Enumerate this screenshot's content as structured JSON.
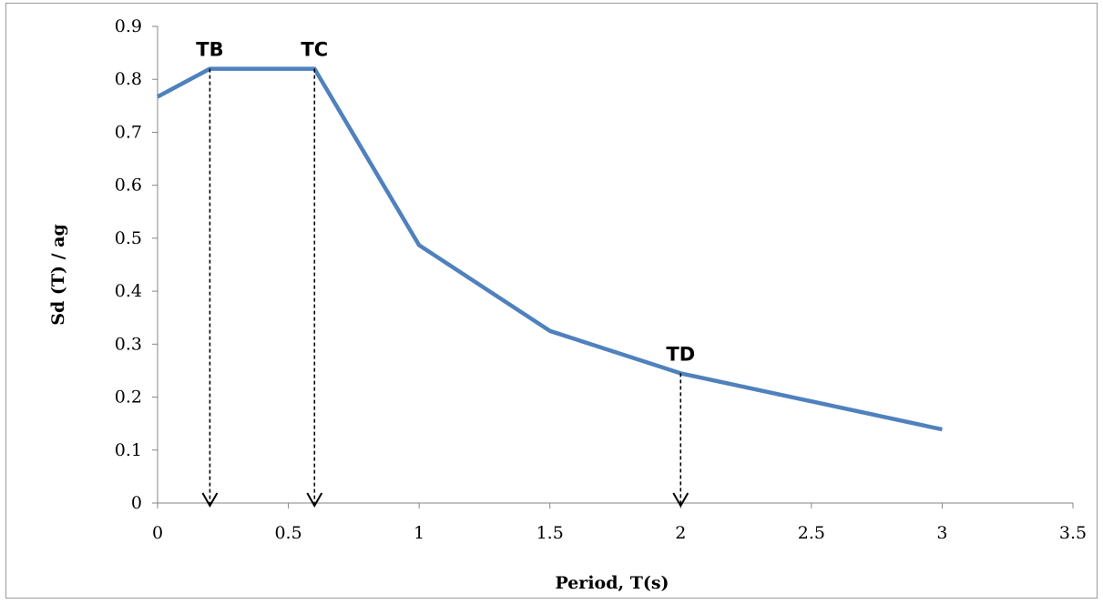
{
  "chart_data": {
    "type": "line",
    "title": "",
    "xlabel": "Period, T(s)",
    "ylabel": "Sd (T) / ag",
    "xlim": [
      0,
      3.5
    ],
    "ylim": [
      0,
      0.9
    ],
    "xticks": [
      0,
      0.5,
      1,
      1.5,
      2,
      2.5,
      3,
      3.5
    ],
    "xtick_labels": [
      "0",
      "0.5",
      "1",
      "1.5",
      "2",
      "2.5",
      "3",
      "3.5"
    ],
    "yticks": [
      0,
      0.1,
      0.2,
      0.3,
      0.4,
      0.5,
      0.6,
      0.7,
      0.8,
      0.9
    ],
    "ytick_labels": [
      "0",
      "0.1",
      "0.2",
      "0.3",
      "0.4",
      "0.5",
      "0.6",
      "0.7",
      "0.8",
      "0.9"
    ],
    "grid": false,
    "legend": "none",
    "series": [
      {
        "color": "#4f81bd",
        "x": [
          0,
          0.2,
          0.6,
          1,
          1.5,
          2,
          3
        ],
        "y": [
          0.767,
          0.82,
          0.82,
          0.487,
          0.325,
          0.245,
          0.139
        ]
      }
    ],
    "annotations": [
      {
        "label": "TB",
        "x": 0.2,
        "y": 0.82,
        "arrow": "dashed-down-to-axis"
      },
      {
        "label": "TC",
        "x": 0.6,
        "y": 0.82,
        "arrow": "dashed-down-to-axis"
      },
      {
        "label": "TD",
        "x": 2,
        "y": 0.245,
        "arrow": "dashed-down-to-axis"
      }
    ]
  }
}
